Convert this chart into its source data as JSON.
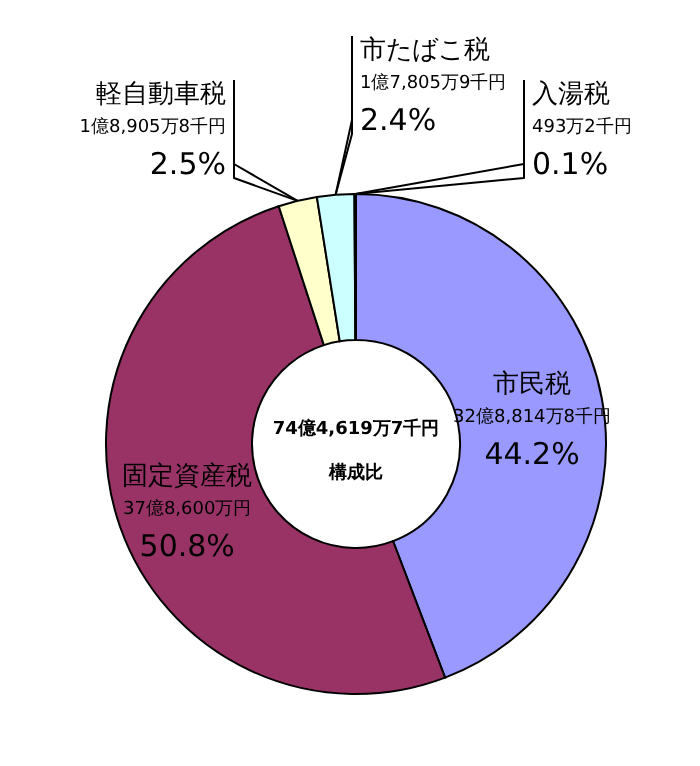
{
  "chart_data": {
    "type": "donut",
    "categories": [
      "市民税",
      "固定資産税",
      "軽自動車税",
      "市たばこ税",
      "入湯税"
    ],
    "values": [
      44.2,
      50.8,
      2.5,
      2.4,
      0.1
    ],
    "colors": [
      "#9999ff",
      "#993366",
      "#ffffcc",
      "#ccffff",
      "#660066"
    ],
    "value_labels": [
      "44.2%",
      "50.8%",
      "2.5%",
      "2.4%",
      "0.1%"
    ],
    "annotations": [
      {
        "text": "32億8,814万8千円",
        "x": "市民税"
      },
      {
        "text": "37億8,600万円",
        "x": "固定資産税"
      },
      {
        "text": "1億8,905万8千円",
        "x": "軽自動車税"
      },
      {
        "text": "1億7,805万9千円",
        "x": "市たばこ税"
      },
      {
        "text": "493万2千円",
        "x": "入湯税"
      },
      "74億4,619万7千円",
      "構成比"
    ]
  }
}
